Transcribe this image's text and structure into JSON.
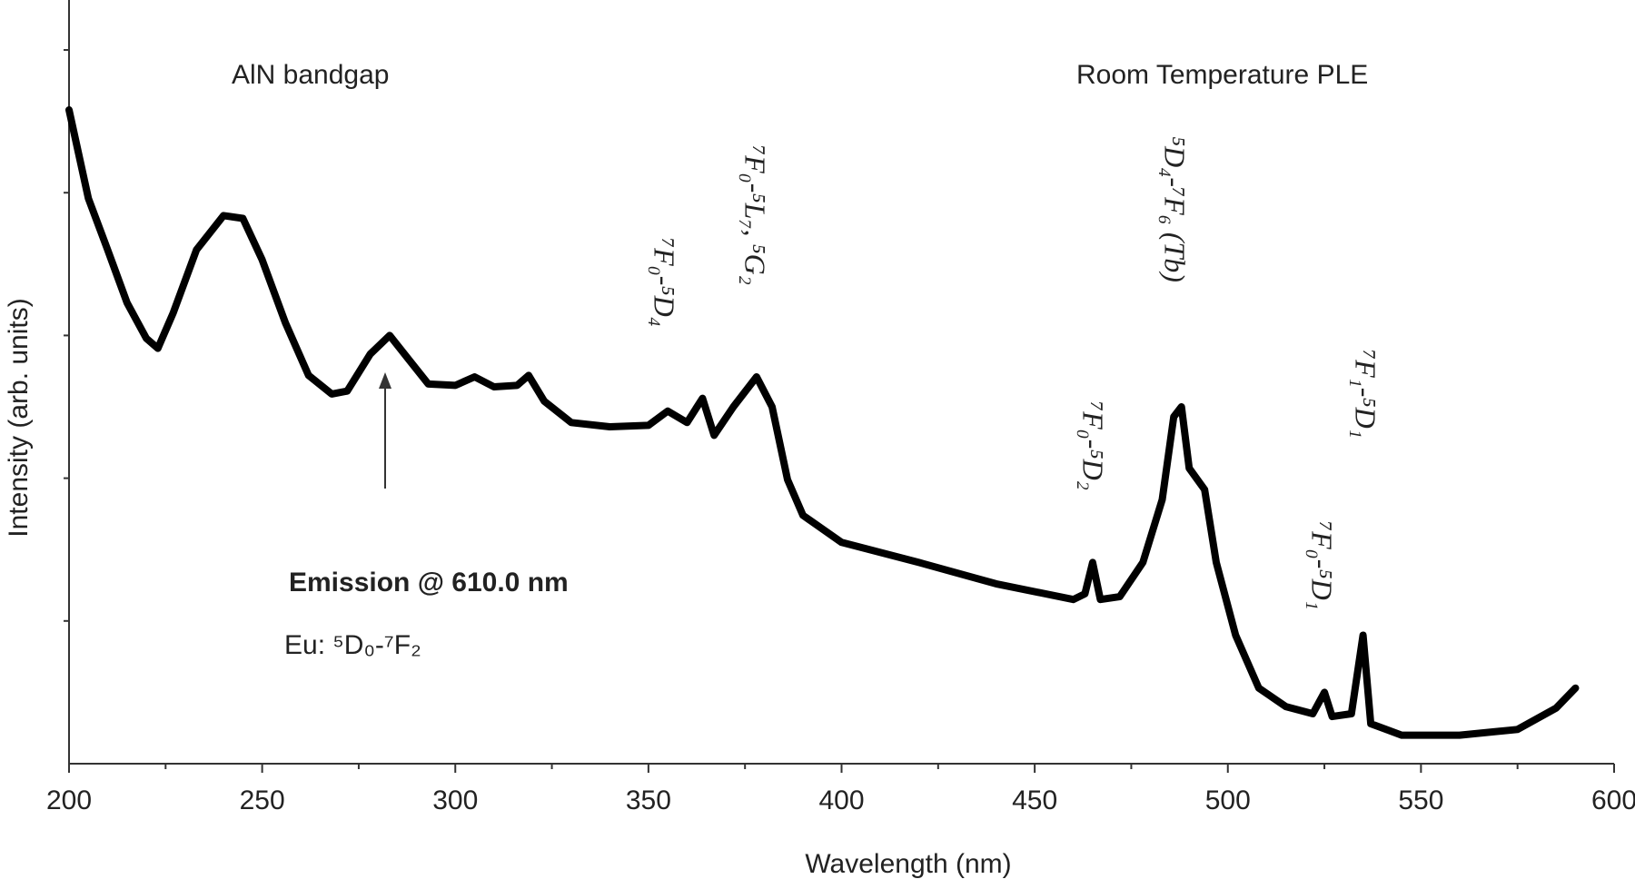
{
  "chart_data": {
    "type": "line",
    "x_label": "Wavelength (nm)",
    "y_label": "Intensity (arb. units)",
    "annotations": [
      "AlN bandgap",
      "Room Temperature PLE",
      "Emission @ 610.0 nm",
      "Eu: ⁵D₀-⁷F₂",
      "⁷F₀-⁵D₄",
      "⁷F₀-⁵L₇, ⁵G₂",
      "⁷F₀-⁵D₂",
      "⁵D₄-⁷F₆ (Tb)",
      "⁷F₀-⁵D₁",
      "⁷F₁-⁵D₁"
    ],
    "x": [
      200,
      205,
      210,
      215,
      220,
      223,
      227,
      233,
      240,
      245,
      250,
      256,
      262,
      268,
      272,
      278,
      283,
      288,
      293,
      300,
      305,
      310,
      316,
      319,
      323,
      330,
      340,
      350,
      355,
      360,
      364,
      367,
      372,
      378,
      382,
      386,
      390,
      400,
      420,
      440,
      460,
      463,
      465,
      467,
      472,
      478,
      483,
      486,
      488,
      490,
      494,
      497,
      502,
      508,
      515,
      522,
      525,
      527,
      532,
      535,
      537,
      545,
      560,
      575,
      585,
      590
    ],
    "series": [
      {
        "color": "#000000",
        "values": [
          4.58,
          3.96,
          3.6,
          3.23,
          2.98,
          2.91,
          3.16,
          3.6,
          3.84,
          3.82,
          3.53,
          3.09,
          2.72,
          2.59,
          2.61,
          2.87,
          3.0,
          2.83,
          2.66,
          2.65,
          2.71,
          2.64,
          2.65,
          2.72,
          2.54,
          2.39,
          2.36,
          2.37,
          2.47,
          2.39,
          2.56,
          2.3,
          2.5,
          2.71,
          2.5,
          1.99,
          1.74,
          1.55,
          1.41,
          1.26,
          1.15,
          1.19,
          1.41,
          1.15,
          1.17,
          1.41,
          1.85,
          2.43,
          2.5,
          2.07,
          1.92,
          1.41,
          0.9,
          0.53,
          0.4,
          0.35,
          0.5,
          0.33,
          0.35,
          0.9,
          0.28,
          0.2,
          0.2,
          0.24,
          0.39,
          0.53
        ]
      }
    ],
    "xlim": [
      200,
      600
    ],
    "xticks": [
      200,
      250,
      300,
      350,
      400,
      450,
      500,
      550,
      600
    ],
    "ylim": [
      0,
      5.35
    ],
    "yticks": [
      1,
      2,
      3,
      4,
      5
    ]
  }
}
